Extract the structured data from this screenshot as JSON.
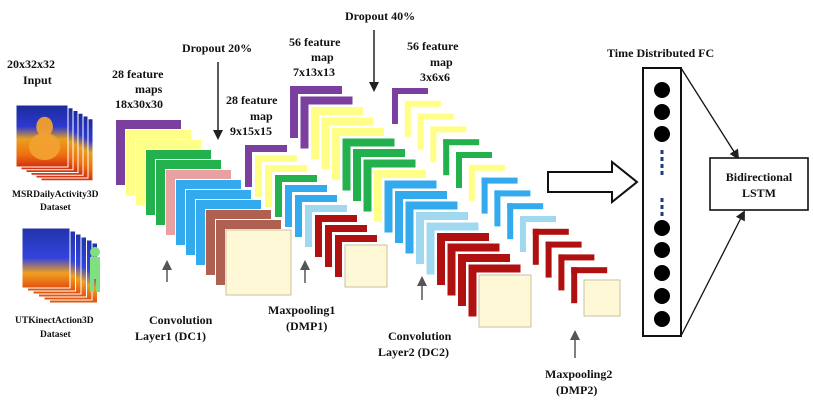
{
  "input": {
    "title_line1": "20x32x32",
    "title_line2": "Input",
    "dataset1_line1": "MSRDailyActivity3D",
    "dataset1_line2": "Dataset",
    "dataset2_line1": "UTKinectAction3D",
    "dataset2_line2": "Dataset"
  },
  "dc1": {
    "maps_line1": "28 feature",
    "maps_line2": "maps",
    "maps_line3": "18x30x30",
    "caption_line1": "Convolution",
    "caption_line2": "Layer1 (DC1)",
    "dropout": "Dropout 20%"
  },
  "dmp1": {
    "maps_line1": "28 feature",
    "maps_line2": "map",
    "maps_line3": "9x15x15",
    "caption_line1": "Maxpooling1",
    "caption_line2": "(DMP1)"
  },
  "dc2": {
    "maps_line1": "56 feature",
    "maps_line2": "map",
    "maps_line3": "7x13x13",
    "caption_line1": "Convolution",
    "caption_line2": "Layer2 (DC2)",
    "dropout": "Dropout 40%"
  },
  "dmp2": {
    "maps_line1": "56 feature",
    "maps_line2": "map",
    "maps_line3": "3x6x6",
    "caption_line1": "Maxpooling2",
    "caption_line2": "(DMP2)"
  },
  "fc": {
    "title": "Time Distributed FC"
  },
  "lstm": {
    "line1": "Bidirectional",
    "line2": "LSTM"
  },
  "colors": {
    "purple": "#7b3fa0",
    "yellow": "#ffff88",
    "green": "#22b14c",
    "pink": "#e8a0a0",
    "skyblue": "#33aaee",
    "brown": "#b06050",
    "lightblue": "#a0d8f0",
    "darkred": "#b01010",
    "cream": "#fff8d6",
    "neuron": "#000000",
    "dashes": "#1a3a8a"
  }
}
